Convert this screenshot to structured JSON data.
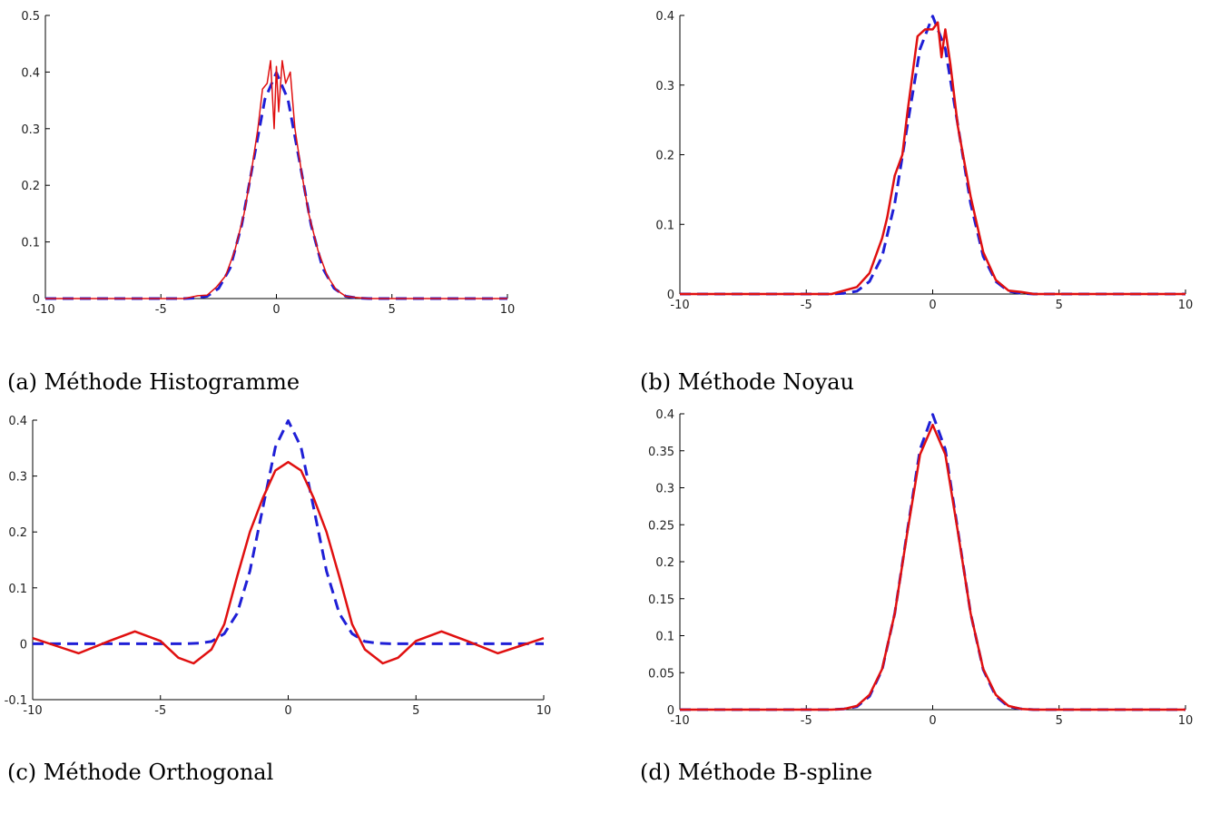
{
  "colors": {
    "true_density": "#1f1fd6",
    "estimate": "#e01010",
    "axis": "#000000"
  },
  "captions": {
    "a": "(a) Méthode Histogramme",
    "b": "(b) Méthode Noyau",
    "c": "(c) Méthode Orthogonal",
    "d": "(d) Méthode B-spline"
  },
  "chart_data": [
    {
      "id": "a",
      "type": "line",
      "xlim": [
        -10,
        10
      ],
      "ylim": [
        0,
        0.5
      ],
      "xticks": [
        -10,
        -5,
        0,
        5,
        10
      ],
      "xtick_labels": [
        "-10",
        "-5",
        "0",
        "5",
        "10"
      ],
      "yticks": [
        0,
        0.1,
        0.2,
        0.3,
        0.4,
        0.5
      ],
      "ytick_labels": [
        "0",
        "0.1",
        "0.2",
        "0.3",
        "0.4",
        "0.5"
      ],
      "series": [
        {
          "style": "dashed",
          "color": "#1f1fd6",
          "x": [
            -10,
            -8,
            -6,
            -4,
            -3.5,
            -3,
            -2.5,
            -2,
            -1.5,
            -1,
            -0.5,
            0,
            0.5,
            1,
            1.5,
            2,
            2.5,
            3,
            3.5,
            4,
            6,
            8,
            10
          ],
          "y": [
            0,
            0,
            0,
            0,
            0.001,
            0.004,
            0.018,
            0.054,
            0.13,
            0.242,
            0.352,
            0.399,
            0.352,
            0.242,
            0.13,
            0.054,
            0.018,
            0.004,
            0.001,
            0,
            0,
            0,
            0
          ]
        },
        {
          "style": "solid",
          "color": "#e01010",
          "x": [
            -10,
            -4,
            -3.4,
            -3,
            -2.6,
            -2.2,
            -1.8,
            -1.4,
            -1.1,
            -0.8,
            -0.6,
            -0.4,
            -0.25,
            -0.1,
            0,
            0.1,
            0.25,
            0.4,
            0.6,
            0.8,
            1.1,
            1.4,
            1.8,
            2.2,
            2.6,
            3,
            3.4,
            4,
            10
          ],
          "y": [
            0,
            0,
            0.005,
            0.006,
            0.02,
            0.04,
            0.085,
            0.15,
            0.22,
            0.3,
            0.37,
            0.38,
            0.42,
            0.3,
            0.41,
            0.33,
            0.42,
            0.38,
            0.4,
            0.3,
            0.22,
            0.15,
            0.085,
            0.04,
            0.015,
            0.004,
            0.002,
            0,
            0
          ]
        }
      ]
    },
    {
      "id": "b",
      "type": "line",
      "xlim": [
        -10,
        10
      ],
      "ylim": [
        0,
        0.4
      ],
      "xticks": [
        -10,
        -5,
        0,
        5,
        10
      ],
      "xtick_labels": [
        "-10",
        "-5",
        "0",
        "5",
        "10"
      ],
      "yticks": [
        0,
        0.1,
        0.2,
        0.3,
        0.4
      ],
      "ytick_labels": [
        "0",
        "0.1",
        "0.2",
        "0.3",
        "0.4"
      ],
      "series": [
        {
          "style": "dashed",
          "color": "#1f1fd6",
          "x": [
            -10,
            -8,
            -6,
            -4,
            -3.5,
            -3,
            -2.5,
            -2,
            -1.5,
            -1,
            -0.5,
            0,
            0.5,
            1,
            1.5,
            2,
            2.5,
            3,
            3.5,
            4,
            6,
            8,
            10
          ],
          "y": [
            0,
            0,
            0,
            0,
            0.001,
            0.004,
            0.018,
            0.054,
            0.13,
            0.242,
            0.352,
            0.399,
            0.352,
            0.242,
            0.13,
            0.054,
            0.018,
            0.004,
            0.001,
            0,
            0,
            0,
            0
          ]
        },
        {
          "style": "solid",
          "color": "#e01010",
          "x": [
            -10,
            -4,
            -3,
            -2.5,
            -2,
            -1.8,
            -1.5,
            -1.2,
            -1,
            -0.6,
            -0.3,
            0,
            0.2,
            0.35,
            0.5,
            0.7,
            1,
            1.5,
            2,
            2.5,
            3,
            3.5,
            4,
            10
          ],
          "y": [
            0,
            0,
            0.01,
            0.03,
            0.08,
            0.11,
            0.17,
            0.2,
            0.26,
            0.37,
            0.38,
            0.38,
            0.39,
            0.34,
            0.38,
            0.33,
            0.24,
            0.14,
            0.06,
            0.02,
            0.005,
            0.003,
            0,
            0
          ]
        }
      ]
    },
    {
      "id": "c",
      "type": "line",
      "xlim": [
        -10,
        10
      ],
      "ylim": [
        -0.1,
        0.4
      ],
      "xticks": [
        -10,
        -5,
        0,
        5,
        10
      ],
      "xtick_labels": [
        "-10",
        "-5",
        "0",
        "5",
        "10"
      ],
      "yticks": [
        -0.1,
        0,
        0.1,
        0.2,
        0.3,
        0.4
      ],
      "ytick_labels": [
        "-0.1",
        "0",
        "0.1",
        "0.2",
        "0.3",
        "0.4"
      ],
      "series": [
        {
          "style": "dashed",
          "color": "#1f1fd6",
          "x": [
            -10,
            -8,
            -6,
            -4,
            -3.5,
            -3,
            -2.5,
            -2,
            -1.5,
            -1,
            -0.5,
            0,
            0.5,
            1,
            1.5,
            2,
            2.5,
            3,
            3.5,
            4,
            6,
            8,
            10
          ],
          "y": [
            0,
            0,
            0,
            0,
            0.001,
            0.004,
            0.018,
            0.054,
            0.13,
            0.242,
            0.352,
            0.399,
            0.352,
            0.242,
            0.13,
            0.054,
            0.018,
            0.004,
            0.001,
            0,
            0,
            0,
            0
          ]
        },
        {
          "style": "solid",
          "color": "#e01010",
          "x": [
            -10,
            -9,
            -8.2,
            -7,
            -6,
            -5,
            -4.3,
            -3.7,
            -3,
            -2.5,
            -2,
            -1.5,
            -1,
            -0.5,
            0,
            0.5,
            1,
            1.5,
            2,
            2.5,
            3,
            3.7,
            4.3,
            5,
            6,
            7,
            8.2,
            9,
            10
          ],
          "y": [
            0.01,
            -0.005,
            -0.017,
            0.005,
            0.022,
            0.005,
            -0.025,
            -0.035,
            -0.01,
            0.035,
            0.12,
            0.2,
            0.26,
            0.31,
            0.325,
            0.31,
            0.26,
            0.2,
            0.12,
            0.035,
            -0.01,
            -0.035,
            -0.025,
            0.005,
            0.022,
            0.005,
            -0.017,
            -0.005,
            0.01
          ]
        }
      ]
    },
    {
      "id": "d",
      "type": "line",
      "xlim": [
        -10,
        10
      ],
      "ylim": [
        0,
        0.4
      ],
      "xticks": [
        -10,
        -5,
        0,
        5,
        10
      ],
      "xtick_labels": [
        "-10",
        "-5",
        "0",
        "5",
        "10"
      ],
      "yticks": [
        0,
        0.05,
        0.1,
        0.15,
        0.2,
        0.25,
        0.3,
        0.35,
        0.4
      ],
      "ytick_labels": [
        "0",
        "0.05",
        "0.1",
        "0.15",
        "0.2",
        "0.25",
        "0.3",
        "0.35",
        "0.4"
      ],
      "series": [
        {
          "style": "dashed",
          "color": "#1f1fd6",
          "x": [
            -10,
            -8,
            -6,
            -4,
            -3.5,
            -3,
            -2.5,
            -2,
            -1.5,
            -1,
            -0.5,
            0,
            0.5,
            1,
            1.5,
            2,
            2.5,
            3,
            3.5,
            4,
            6,
            8,
            10
          ],
          "y": [
            0,
            0,
            0,
            0,
            0.001,
            0.004,
            0.018,
            0.054,
            0.13,
            0.242,
            0.352,
            0.399,
            0.352,
            0.242,
            0.13,
            0.054,
            0.018,
            0.004,
            0.001,
            0,
            0,
            0,
            0
          ]
        },
        {
          "style": "solid",
          "color": "#e01010",
          "x": [
            -10,
            -4,
            -3.5,
            -3,
            -2.5,
            -2,
            -1.5,
            -1,
            -0.5,
            0,
            0.5,
            1,
            1.5,
            2,
            2.5,
            3,
            3.5,
            4,
            10
          ],
          "y": [
            0,
            0,
            0.001,
            0.005,
            0.02,
            0.055,
            0.13,
            0.24,
            0.345,
            0.385,
            0.345,
            0.24,
            0.13,
            0.055,
            0.02,
            0.005,
            0.001,
            0,
            0
          ]
        }
      ]
    }
  ]
}
